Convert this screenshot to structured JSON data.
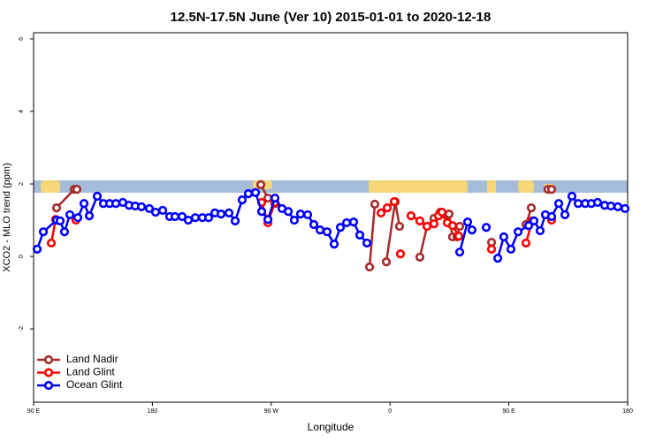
{
  "chart_data": {
    "type": "line",
    "title": "12.5N-17.5N June (Ver 10)   2015-01-01 to 2020-12-18",
    "xlabel": "Longitude",
    "ylabel": "XCO2 - MLO trend (ppm)",
    "xlim": [
      90,
      540
    ],
    "xticks": [
      {
        "value": 90,
        "label": "90 E"
      },
      180,
      {
        "value": 270,
        "label": "90 W"
      },
      {
        "value": 360,
        "label": "0"
      },
      {
        "value": 450,
        "label": "90 E"
      },
      {
        "value": 540,
        "label": "180"
      }
    ],
    "ylim": [
      -4.02,
      6.17
    ],
    "yticks": [
      -2,
      0,
      2,
      4,
      6
    ],
    "legend": "bottom-left",
    "series": [
      {
        "name": "Land Nadir",
        "color": "#a52a2a",
        "x": [
          107.4,
          120.8,
          122.8,
          null,
          262.1,
          267.5,
          272.8,
          null,
          344.5,
          348.5,
          null,
          357.2,
          363.9,
          367.2,
          null,
          382.6,
          388.0,
          393.3,
          398.0,
          402.1,
          404.7,
          407.4,
          410.8,
          412.8,
          null,
          436.9,
          null,
          463.0,
          467.0,
          null,
          479.7,
          482.4
        ],
        "values": [
          1.34,
          1.85,
          1.85,
          null,
          1.98,
          1.61,
          1.46,
          null,
          -0.29,
          1.44,
          null,
          -0.15,
          1.51,
          0.83,
          null,
          -0.02,
          0.83,
          1.05,
          1.22,
          1.15,
          1.17,
          0.54,
          0.54,
          0.83,
          null,
          0.39,
          null,
          0.88,
          1.34,
          null,
          1.85,
          1.85
        ]
      },
      {
        "name": "Land Glint",
        "color": "#ff0000",
        "x": [
          103.4,
          106.7,
          null,
          122.1,
          null,
          262.8,
          267.5,
          272.8,
          null,
          353.2,
          357.9,
          363.2,
          null,
          367.9,
          null,
          375.9,
          382.6,
          388.0,
          393.3,
          396.7,
          399.4,
          403.4,
          407.4,
          412.1,
          null,
          436.9,
          null,
          463.0,
          467.7,
          null,
          482.4
        ],
        "values": [
          0.37,
          1.02,
          null,
          1.0,
          null,
          1.49,
          0.93,
          1.49,
          null,
          1.2,
          1.34,
          1.51,
          null,
          0.07,
          null,
          1.12,
          0.98,
          0.83,
          0.9,
          1.12,
          1.22,
          0.93,
          0.85,
          0.56,
          null,
          0.2,
          null,
          0.37,
          0.98,
          null,
          1.0
        ]
      },
      {
        "name": "Ocean Glint",
        "color": "#0000ff",
        "x": [
          92.7,
          97.4,
          107.4,
          110.1,
          113.4,
          117.5,
          123.5,
          128.2,
          132.2,
          138.2,
          142.9,
          147.6,
          152.3,
          157.6,
          162.3,
          167.0,
          171.7,
          177.7,
          182.4,
          187.8,
          193.1,
          197.1,
          202.5,
          207.2,
          212.5,
          217.9,
          222.6,
          227.3,
          232.0,
          238.0,
          242.7,
          248.0,
          252.7,
          258.1,
          262.8,
          267.5,
          272.8,
          278.2,
          282.9,
          287.5,
          292.2,
          297.6,
          302.3,
          307.0,
          312.3,
          317.7,
          322.4,
          327.1,
          332.4,
          337.1,
          342.5,
          null,
          412.8,
          418.8,
          422.1,
          null,
          432.9,
          null,
          441.6,
          446.2,
          451.6,
          457.0,
          465.0,
          469.0,
          473.7,
          477.7,
          482.4,
          487.8,
          492.5,
          497.8,
          502.5,
          507.9,
          512.5,
          517.2,
          522.6,
          527.3,
          532.6,
          538.0
        ],
        "values": [
          0.2,
          0.68,
          1.0,
          0.98,
          0.68,
          1.15,
          1.07,
          1.46,
          1.12,
          1.66,
          1.46,
          1.46,
          1.46,
          1.49,
          1.41,
          1.39,
          1.37,
          1.32,
          1.22,
          1.27,
          1.1,
          1.1,
          1.1,
          1.0,
          1.07,
          1.07,
          1.07,
          1.2,
          1.17,
          1.2,
          0.98,
          1.56,
          1.73,
          1.76,
          1.24,
          1.02,
          1.61,
          1.32,
          1.24,
          1.0,
          1.17,
          1.15,
          0.88,
          0.73,
          0.68,
          0.34,
          0.8,
          0.93,
          0.95,
          0.59,
          0.37,
          null,
          0.12,
          0.95,
          0.73,
          null,
          0.8,
          null,
          -0.05,
          0.54,
          0.2,
          0.68,
          0.85,
          0.98,
          0.71,
          1.15,
          1.1,
          1.46,
          1.15,
          1.66,
          1.46,
          1.46,
          1.46,
          1.49,
          1.41,
          1.39,
          1.37,
          1.32
        ]
      }
    ]
  }
}
